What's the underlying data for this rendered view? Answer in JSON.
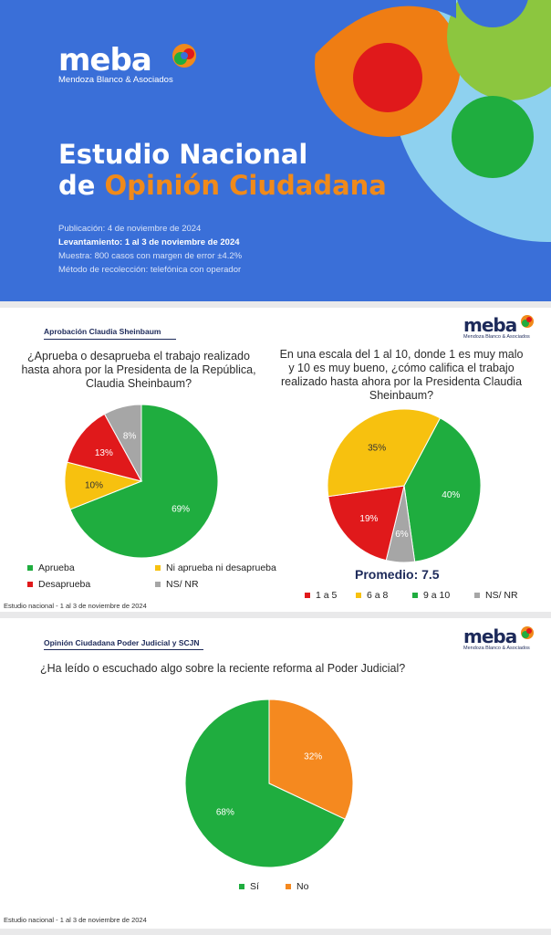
{
  "cover": {
    "brand": "meba",
    "brand_sub": "Mendoza Blanco & Asociados",
    "title_line1": "Estudio Nacional",
    "title_de": "de ",
    "title_accent": "Opinión Ciudadana",
    "pub": "Publicación: 4 de noviembre de 2024",
    "levantamiento": "Levantamiento: 1 al 3 de noviembre de 2024",
    "muestra": "Muestra: 800 casos con margen de error ±4.2%",
    "metodo": "Método de recolección: telefónica con operador",
    "colors": {
      "bg": "#3a6fd8",
      "accent": "#f08a1a"
    }
  },
  "slide1": {
    "header": "Aprobación Claudia Sheinbaum",
    "brand": "meba",
    "brand_sub": "Mendoza Blanco & Asociados",
    "q_left": [
      "¿Aprueba o desaprueba el trabajo realizado",
      "hasta ahora por la Presidenta de la República,",
      "Claudia Sheinbaum?"
    ],
    "q_right": [
      "En una escala del 1 al 10, donde 1 es muy malo",
      "y 10 es muy bueno, ¿cómo califica el trabajo",
      "realizado hasta ahora por la Presidenta Claudia",
      "Sheinbaum?"
    ],
    "promedio": "Promedio: 7.5",
    "footer": "Estudio nacional - 1 al 3 de noviembre de 2024"
  },
  "slide2": {
    "header": "Opinión Ciudadana Poder Judicial y SCJN",
    "brand": "meba",
    "brand_sub": "Mendoza Blanco & Asociados",
    "question": "¿Ha leído o escuchado algo sobre la reciente reforma al Poder Judicial?",
    "footer": "Estudio nacional - 1 al 3 de noviembre de 2024"
  },
  "chart_data": [
    {
      "type": "pie",
      "categories": [
        "Aprueba",
        "Ni aprueba ni desaprueba",
        "Desaprueba",
        "NS/ NR"
      ],
      "values": [
        69,
        10,
        13,
        8
      ],
      "labels": [
        "69%",
        "10%",
        "13%",
        "8%"
      ],
      "colors": [
        "#1fad3f",
        "#f7c10f",
        "#e0191b",
        "#a6a6a6"
      ]
    },
    {
      "type": "pie",
      "categories": [
        "1 a 5",
        "6 a 8",
        "9 a 10",
        "NS/ NR"
      ],
      "values": [
        19,
        35,
        40,
        6
      ],
      "labels": [
        "19%",
        "35%",
        "40%",
        "6%"
      ],
      "colors": [
        "#e0191b",
        "#f7c10f",
        "#1fad3f",
        "#a6a6a6"
      ]
    },
    {
      "type": "pie",
      "categories": [
        "Sí",
        "No"
      ],
      "values": [
        68,
        32
      ],
      "labels": [
        "68%",
        "32%"
      ],
      "colors": [
        "#1fad3f",
        "#f5891f"
      ]
    }
  ]
}
